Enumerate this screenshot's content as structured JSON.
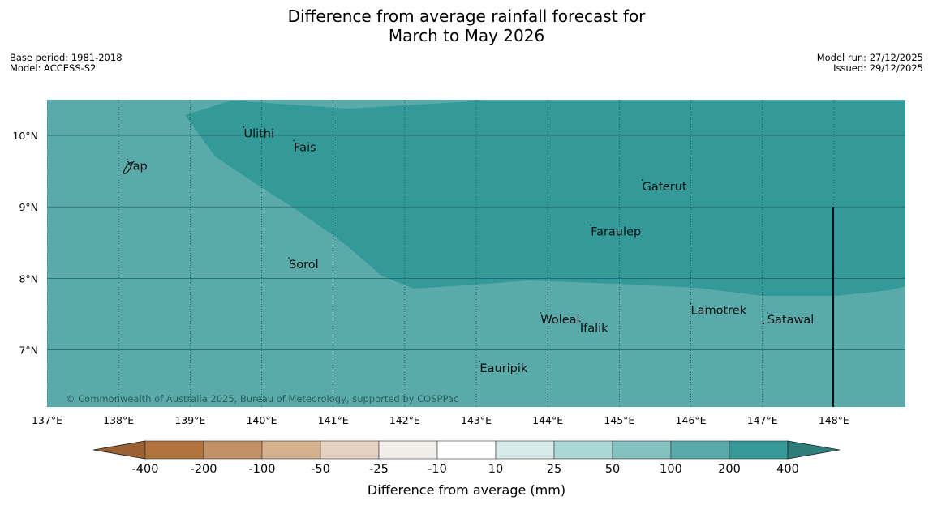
{
  "title_line1": "Difference from average rainfall forecast for",
  "title_line2": "March to May 2026",
  "base_period": "Base period: 1981-2018",
  "model": "Model: ACCESS-S2",
  "model_run": "Model run: 27/12/2025",
  "issued": "Issued: 29/12/2025",
  "copyright": "© Commonwealth of Australia 2025, Bureau of Meteorology, supported by COSPPac",
  "colors": {
    "sea_100_200": "#5aaaaa",
    "sea_200_400": "#339999",
    "above_400": "#2e7d7b",
    "below_minus400": "#9b6133"
  },
  "lon_ticks": [
    "137°E",
    "138°E",
    "139°E",
    "140°E",
    "141°E",
    "142°E",
    "143°E",
    "144°E",
    "145°E",
    "146°E",
    "147°E",
    "148°E"
  ],
  "lat_ticks": [
    "10°N",
    "9°N",
    "8°N",
    "7°N"
  ],
  "places": [
    {
      "name": "Ulithi",
      "lon": 139.75,
      "lat": 9.97
    },
    {
      "name": "Fais",
      "lon": 140.45,
      "lat": 9.78
    },
    {
      "name": "Yap",
      "lon": 138.12,
      "lat": 9.52
    },
    {
      "name": "Gaferut",
      "lon": 145.32,
      "lat": 9.23
    },
    {
      "name": "Faraulep",
      "lon": 144.6,
      "lat": 8.6
    },
    {
      "name": "Sorol",
      "lon": 140.38,
      "lat": 8.14
    },
    {
      "name": "Lamotrek",
      "lon": 146.0,
      "lat": 7.5
    },
    {
      "name": "Woleai",
      "lon": 143.9,
      "lat": 7.37
    },
    {
      "name": "Ifalik",
      "lon": 144.45,
      "lat": 7.25
    },
    {
      "name": "Satawal",
      "lon": 147.07,
      "lat": 7.37
    },
    {
      "name": "Eauripik",
      "lon": 143.05,
      "lat": 6.69
    }
  ],
  "legend": {
    "title": "Difference from average (mm)",
    "labels": [
      "-400",
      "-200",
      "-100",
      "-50",
      "-25",
      "-10",
      "10",
      "25",
      "50",
      "100",
      "200",
      "400"
    ],
    "colors": [
      "#b1743d",
      "#c29267",
      "#d5b08e",
      "#e5d1bf",
      "#f1ede8",
      "#ffffff",
      "#d6eaea",
      "#acd7d7",
      "#83c1c1",
      "#5aaaaa",
      "#339999"
    ]
  }
}
